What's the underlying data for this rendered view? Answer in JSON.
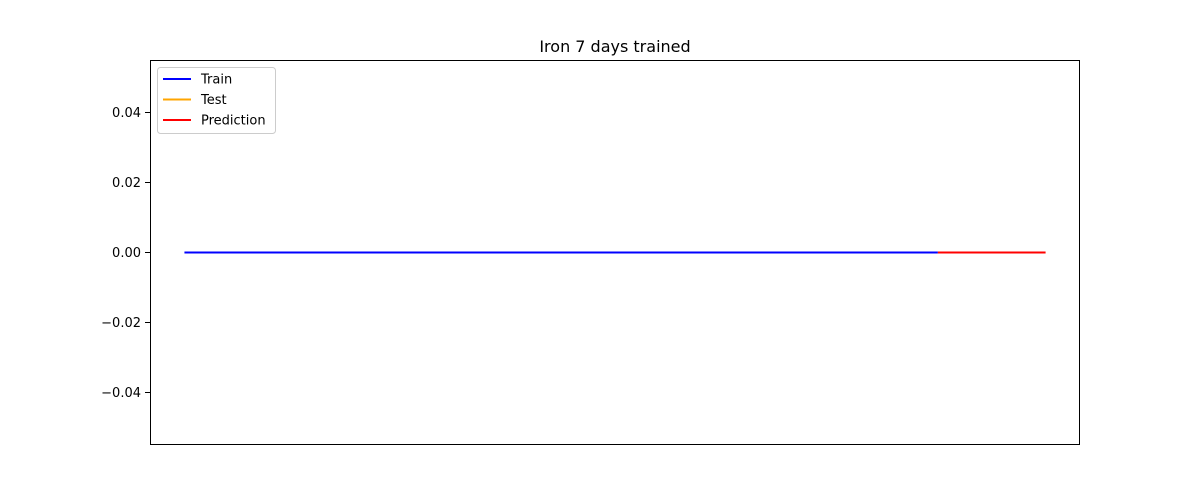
{
  "chart_data": {
    "type": "line",
    "title": "Iron 7 days trained",
    "xlabel": "",
    "ylabel": "",
    "ylim": [
      -0.055,
      0.055
    ],
    "xlim": [
      -0.04,
      1.04
    ],
    "yticks": [
      -0.04,
      -0.02,
      0.0,
      0.02,
      0.04
    ],
    "ytick_labels": [
      "−0.04",
      "−0.02",
      "0.00",
      "0.02",
      "0.04"
    ],
    "xticks_visible": false,
    "grid": false,
    "legend": {
      "placement": "top-left",
      "entries": [
        "Train",
        "Test",
        "Prediction"
      ]
    },
    "series": [
      {
        "name": "Train",
        "color": "#0000ff",
        "x": [
          0.0,
          0.875
        ],
        "y": [
          0.0,
          0.0
        ]
      },
      {
        "name": "Test",
        "color": "#ffa500",
        "x": [
          0.875,
          1.0
        ],
        "y": [
          0.0,
          0.0
        ]
      },
      {
        "name": "Prediction",
        "color": "#ff0000",
        "x": [
          0.875,
          1.0
        ],
        "y": [
          0.0,
          0.0
        ]
      }
    ]
  }
}
